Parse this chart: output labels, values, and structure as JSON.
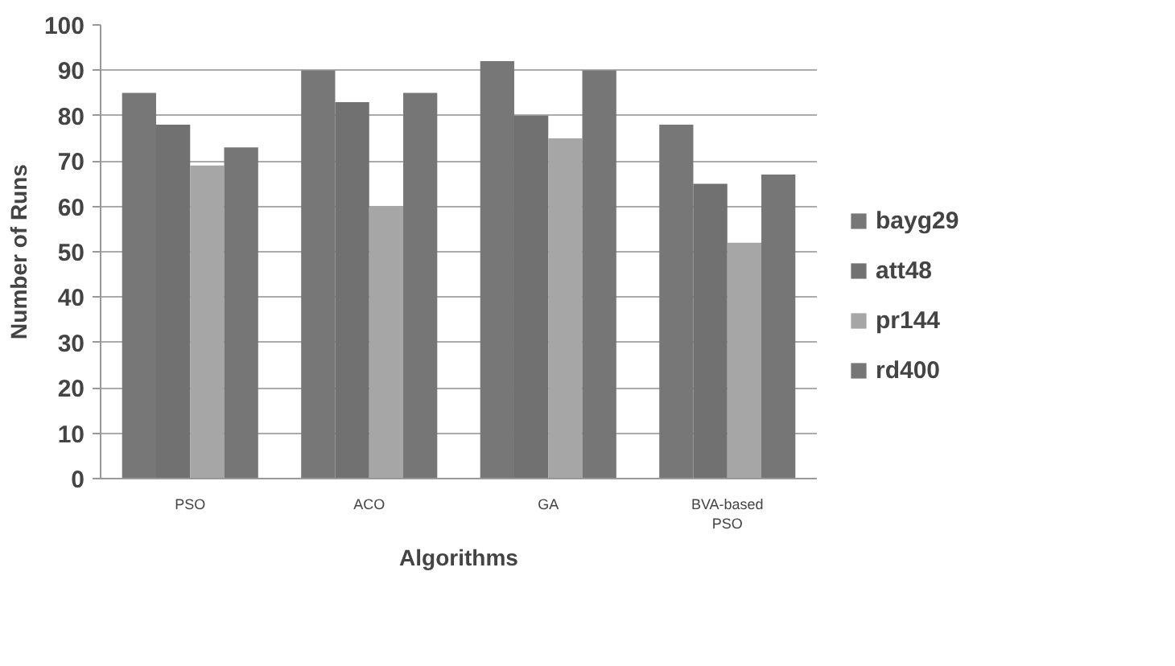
{
  "chart_data": {
    "type": "bar",
    "xlabel": "Algorithms",
    "ylabel": "Number of Runs",
    "categories": [
      "PSO",
      "ACO",
      "GA",
      "BVA-based PSO"
    ],
    "series": [
      {
        "name": "bayg29",
        "color": "#777777",
        "values": [
          85,
          90,
          92,
          78
        ]
      },
      {
        "name": "att48",
        "color": "#717171",
        "values": [
          78,
          83,
          80,
          65
        ]
      },
      {
        "name": "pr144",
        "color": "#a6a6a6",
        "values": [
          69,
          60,
          75,
          52
        ]
      },
      {
        "name": "rd400",
        "color": "#767676",
        "values": [
          73,
          85,
          90,
          67
        ]
      }
    ],
    "ylim": [
      0,
      100
    ],
    "yticks": [
      0,
      10,
      20,
      30,
      40,
      50,
      60,
      70,
      80,
      90,
      100
    ],
    "grid": "y",
    "legend": "right"
  }
}
